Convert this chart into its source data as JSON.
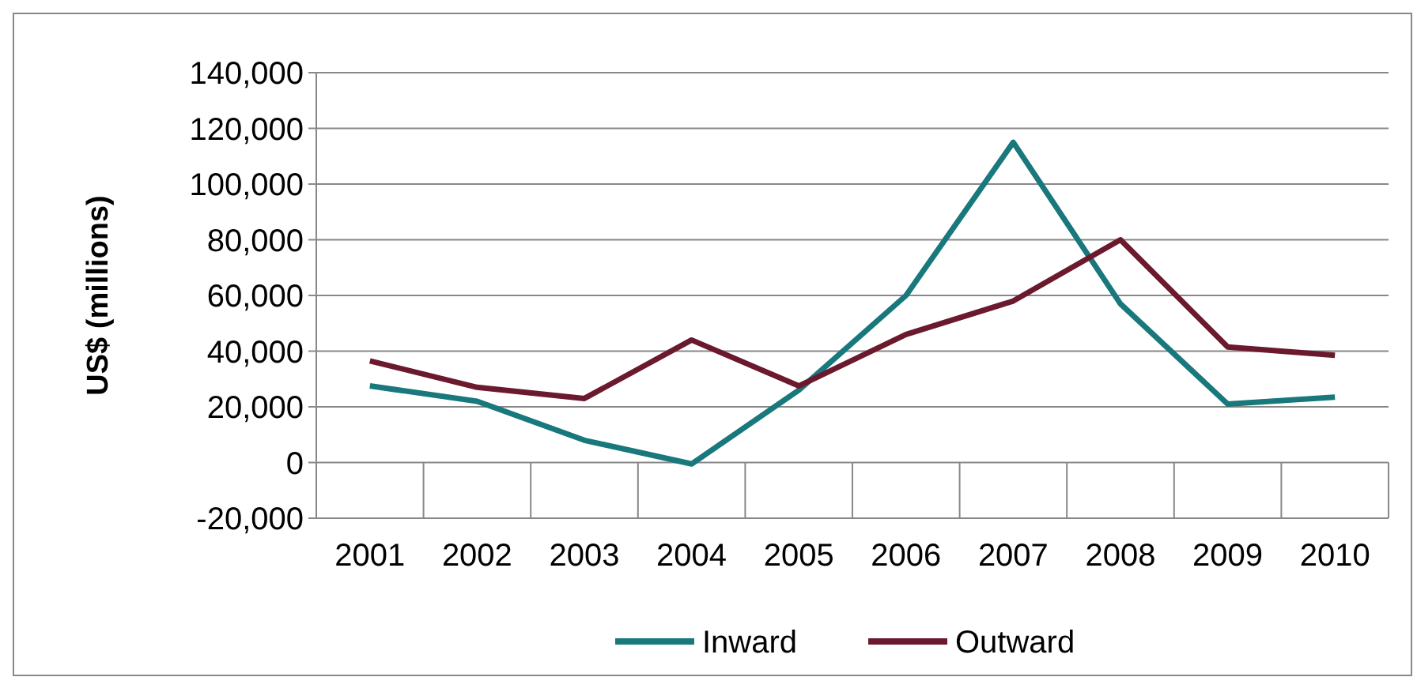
{
  "chart_data": {
    "type": "line",
    "ylabel": "US$ (millions)",
    "categories": [
      "2001",
      "2002",
      "2003",
      "2004",
      "2005",
      "2006",
      "2007",
      "2008",
      "2009",
      "2010"
    ],
    "series": [
      {
        "name": "Inward",
        "color": "#18787c",
        "values": [
          27500,
          22000,
          8000,
          -500,
          26000,
          60000,
          115000,
          57000,
          21000,
          23500
        ]
      },
      {
        "name": "Outward",
        "color": "#6b1a2e",
        "values": [
          36500,
          27000,
          23000,
          44000,
          27500,
          46000,
          58000,
          80000,
          41500,
          38500
        ]
      }
    ],
    "ylim": [
      -20000,
      140000
    ],
    "yticks": [
      {
        "value": -20000,
        "label": "-20,000"
      },
      0,
      {
        "value": 20000,
        "label": "20,000"
      },
      {
        "value": 40000,
        "label": "40,000"
      },
      {
        "value": 60000,
        "label": "60,000"
      },
      {
        "value": 80000,
        "label": "80,000"
      },
      {
        "value": 100000,
        "label": "100,000"
      },
      {
        "value": 120000,
        "label": "120,000"
      },
      {
        "value": 140000,
        "label": "140,000"
      }
    ],
    "grid": "y",
    "legend": "bottom",
    "marker": "none",
    "line_style": "solid"
  }
}
